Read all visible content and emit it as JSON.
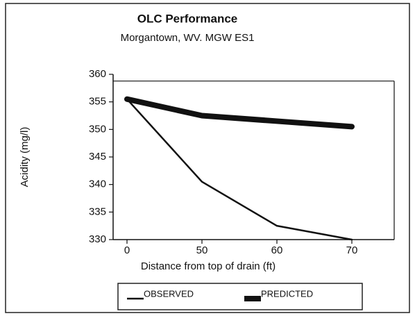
{
  "chart_data": {
    "type": "line",
    "title": "OLC Performance",
    "subtitle": "Morgantown, WV. MGW ES1",
    "x_label": "Distance from top of drain (ft)",
    "y_label": "Acidity (mg/l)",
    "categories": [
      "0",
      "50",
      "60",
      "70"
    ],
    "series": [
      {
        "name": "OBSERVED",
        "color": "#111111",
        "width": 2.5,
        "values": [
          355.5,
          340.5,
          332.5,
          330
        ]
      },
      {
        "name": "PREDICTED",
        "color": "#111111",
        "width": 8,
        "values": [
          355.5,
          352.5,
          351.5,
          350.5
        ]
      }
    ],
    "ylim": [
      330,
      360
    ],
    "yticks": [
      330,
      335,
      340,
      345,
      350,
      355,
      360
    ],
    "legend": "bottom"
  }
}
